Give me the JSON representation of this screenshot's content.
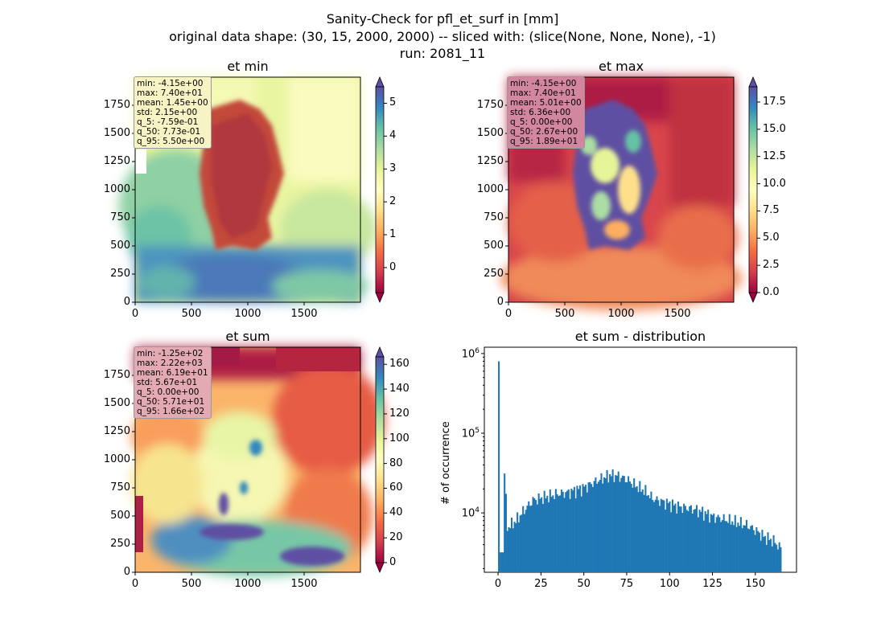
{
  "suptitle": {
    "line1": "Sanity-Check for pfl_et_surf in [mm]",
    "line2": "original data shape: (30, 15, 2000, 2000) -- sliced with: (slice(None, None, None), -1)",
    "line3": "run: 2081_11"
  },
  "chart_data": [
    {
      "type": "heatmap",
      "title": "et min",
      "xlim": [
        0,
        2000
      ],
      "ylim": [
        0,
        2000
      ],
      "xticks": [
        0,
        500,
        1000,
        1500
      ],
      "yticks": [
        0,
        250,
        500,
        750,
        1000,
        1250,
        1500,
        1750
      ],
      "colormap": "Spectral",
      "colorbar": {
        "min": -0.76,
        "max": 5.5,
        "ticks": [
          0,
          1,
          2,
          3,
          4,
          5
        ],
        "extend": "both"
      },
      "stats": [
        "min: -4.15e+00",
        "max: 7.40e+01",
        "mean: 1.45e+00",
        "std: 2.15e+00",
        "q_5: -7.59e-01",
        "q_50: 7.73e-01",
        "q_95: 5.50e+00"
      ],
      "statbox_color": "#f7f3c4"
    },
    {
      "type": "heatmap",
      "title": "et max",
      "xlim": [
        0,
        2000
      ],
      "ylim": [
        0,
        2000
      ],
      "xticks": [
        0,
        500,
        1000,
        1500
      ],
      "yticks": [
        0,
        250,
        500,
        750,
        1000,
        1250,
        1500,
        1750
      ],
      "colormap": "Spectral",
      "colorbar": {
        "min": 0,
        "max": 18.9,
        "ticks": [
          0.0,
          2.5,
          5.0,
          7.5,
          10.0,
          12.5,
          15.0,
          17.5
        ],
        "extend": "both"
      },
      "stats": [
        "min: -4.15e+00",
        "max: 7.40e+01",
        "mean: 5.01e+00",
        "std: 6.36e+00",
        "q_5: 0.00e+00",
        "q_50: 2.67e+00",
        "q_95: 1.89e+01"
      ],
      "statbox_color": "#d3869f"
    },
    {
      "type": "heatmap",
      "title": "et sum",
      "xlim": [
        0,
        2000
      ],
      "ylim": [
        0,
        2000
      ],
      "xticks": [
        0,
        500,
        1000,
        1500
      ],
      "yticks": [
        0,
        250,
        500,
        750,
        1000,
        1250,
        1500,
        1750
      ],
      "colormap": "Spectral",
      "colorbar": {
        "min": 0,
        "max": 166,
        "ticks": [
          0,
          20,
          40,
          60,
          80,
          100,
          120,
          140,
          160
        ],
        "extend": "both"
      },
      "stats": [
        "min: -1.25e+02",
        "max: 2.22e+03",
        "mean: 6.19e+01",
        "std: 5.67e+01",
        "q_5: 0.00e+00",
        "q_50: 5.71e+01",
        "q_95: 1.66e+02"
      ],
      "statbox_color": "#e4aab4"
    },
    {
      "type": "bar",
      "title": "et sum - distribution",
      "ylabel": "# of occurrence",
      "yscale": "log",
      "xlim": [
        -8,
        174
      ],
      "ylim": [
        1800,
        1200000
      ],
      "xticks": [
        0,
        25,
        50,
        75,
        100,
        125,
        150
      ],
      "yticks": [
        {
          "value": 10000,
          "label": "10",
          "exp": "4"
        },
        {
          "value": 100000,
          "label": "10",
          "exp": "5"
        },
        {
          "value": 1000000,
          "label": "10",
          "exp": "6"
        }
      ],
      "color": "#1f77b4",
      "bin_width": 0.83,
      "bins_x": [
        0,
        5,
        10,
        15,
        20,
        25,
        30,
        35,
        40,
        45,
        50,
        55,
        60,
        65,
        70,
        75,
        80,
        85,
        90,
        95,
        100,
        105,
        110,
        115,
        120,
        125,
        130,
        135,
        140,
        145,
        150,
        155,
        160,
        165
      ],
      "bins_y": [
        800000,
        6500,
        8000,
        11000,
        14500,
        15500,
        16500,
        17500,
        18000,
        19500,
        21000,
        24000,
        27000,
        30000,
        29000,
        26000,
        22000,
        19000,
        15000,
        14000,
        13000,
        12000,
        11500,
        11000,
        10000,
        9000,
        8500,
        8000,
        7500,
        7000,
        6000,
        5000,
        4500,
        3500
      ]
    }
  ]
}
